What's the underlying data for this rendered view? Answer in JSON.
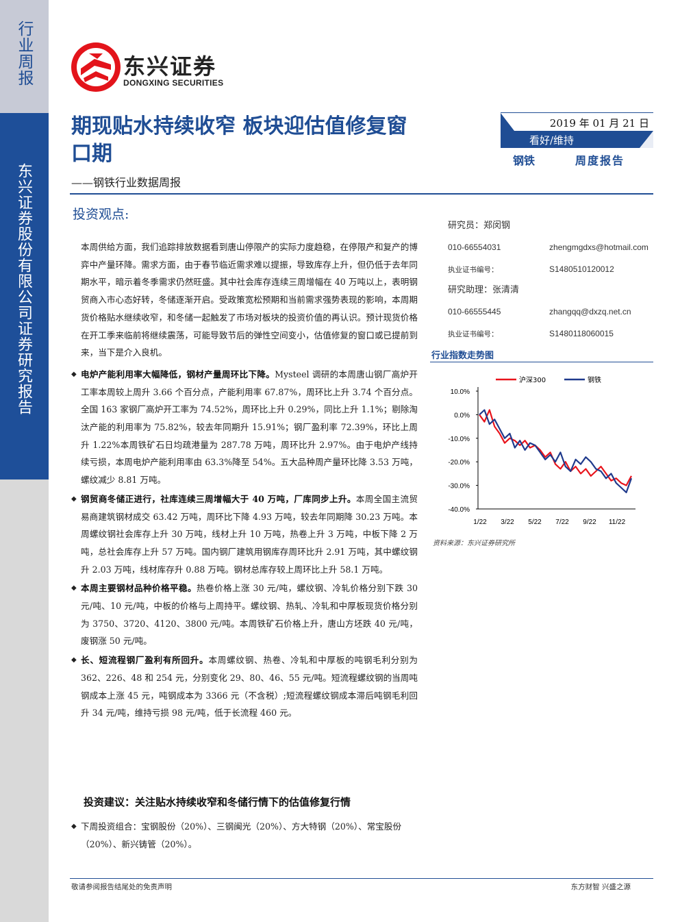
{
  "sidebar": {
    "tag": "行业周报",
    "company": "东兴证券股份有限公司证券研究报告"
  },
  "logo": {
    "cn": "东兴证券",
    "en": "DONGXING SECURITIES"
  },
  "header": {
    "title": "期现贴水持续收窄 板块迎估值修复窗口期",
    "subtitle": "——钢铁行业数据周报",
    "date": "2019 年 01 月 21 日",
    "rating": "看好/维持",
    "industry": "钢铁",
    "report_type": "周度报告"
  },
  "section_heading": "投资观点:",
  "intro": "本周供给方面，我们追踪排放数据看到唐山停限产的实际力度趋稳，在停限产和复产的博弈中产量环降。需求方面，由于春节临近需求难以提振，导致库存上升，但仍低于去年同期水平，暗示着冬季需求仍然旺盛。其中社会库存连续三周增幅在 40 万吨以上，表明钢贸商入市心态好转，冬储逐渐开启。受政策宽松预期和当前需求强势表现的影响，本周期货价格贴水继续收窄，和冬储一起触发了市场对板块的投资价值的再认识。预计现货价格在开工季来临前将继续震荡，可能导致节后的弹性空间变小，估值修复的窗口或已提前到来，当下是介入良机。",
  "bullets": [
    {
      "bold": "电炉产能利用率大幅降低，钢材产量周环比下降。",
      "text": "Mysteel 调研的本周唐山钢厂高炉开工率本周较上周升 3.66 个百分点，产能利用率 67.87%，周环比上升 3.74 个百分点。全国 163 家钢厂高炉开工率为 74.52%，周环比上升 0.29%，同比上升 1.1%；剔除淘汰产能的利用率为 75.82%，较去年同期升 15.91%；钢厂盈利率 72.39%，环比上周升 1.22%本周铁矿石日均疏港量为 287.78 万吨，周环比升 2.97%。由于电炉产线持续亏损，本周电炉产能利用率由 63.3%降至 54%。五大品种周产量环比降 3.53 万吨，螺纹减少 8.81 万吨。"
    },
    {
      "bold": "钢贸商冬储正进行，社库连续三周增幅大于 40 万吨，厂库同步上升。",
      "text": "本周全国主流贸易商建筑钢材成交 63.42 万吨，周环比下降 4.93 万吨，较去年同期降 30.23 万吨。本周螺纹钢社会库存上升 30 万吨，线材上升 10 万吨，热卷上升 3 万吨，中板下降 2 万吨，总社会库存上升 57 万吨。国内钢厂建筑用钢库存周环比升 2.91 万吨，其中螺纹钢升 2.03 万吨，线材库存升 0.88 万吨。钢材总库存较上周环比上升 58.1 万吨。"
    },
    {
      "bold": "本周主要钢材品种价格平稳。",
      "text": "热卷价格上涨 30 元/吨，螺纹钢、冷轧价格分别下跌 30 元/吨、10 元/吨，中板的价格与上周持平。螺纹钢、热轧、冷轧和中厚板现货价格分别为 3750、3720、4120、3800 元/吨。本周铁矿石价格上升，唐山方坯跌 40 元/吨，废钢涨 50 元/吨。"
    },
    {
      "bold": "长、短流程钢厂盈利有所回升。",
      "text": "本周螺纹钢、热卷、冷轧和中厚板的吨钢毛利分别为 362、226、48 和 254 元，分别变化 29、80、46、55 元/吨。短流程螺纹钢的当周吨钢成本上涨 45 元，吨钢成本为 3366 元（不含税）;短流程螺纹钢成本滞后吨钢毛利回升 34 元/吨，维持亏损 98 元/吨，低于长流程 460 元。"
    }
  ],
  "advice_heading": "投资建议：关注贴水持续收窄和冬储行情下的估值修复行情",
  "portfolio": "下周投资组合：宝钢股份（20%）、三钢闽光（20%）、方大特钢（20%）、常宝股份（20%）、新兴铸管（20%）。",
  "analysts": {
    "a1_label": "研究员：郑闵钢",
    "a1_phone": "010-66554031",
    "a1_email": "zhengmgdxs@hotmail.com",
    "a1_cert_label": "执业证书编号：",
    "a1_cert": "S1480510120012",
    "a2_label": "研究助理：张清清",
    "a2_phone": "010-66555445",
    "a2_email": "zhangqq@dxzq.net.cn",
    "a2_cert_label": "执业证书编号：",
    "a2_cert": "S1480118060015"
  },
  "chart_title": "行业指数走势图",
  "chart_source": "资料来源：东兴证券研究所",
  "chart_data": {
    "type": "line",
    "x_ticks": [
      "1/22",
      "3/22",
      "5/22",
      "7/22",
      "9/22",
      "11/22"
    ],
    "y_ticks": [
      "10.0%",
      "0.0%",
      "-10.0%",
      "-20.0%",
      "-30.0%",
      "-40.0%"
    ],
    "ylim": [
      -40,
      10
    ],
    "series": [
      {
        "name": "沪深300",
        "color": "#e8141c",
        "values": [
          0,
          -3,
          2,
          -5,
          -8,
          -12,
          -10,
          -11,
          -13,
          -11,
          -14,
          -13,
          -15,
          -18,
          -16,
          -21,
          -23,
          -20,
          -24,
          -22,
          -25,
          -23,
          -26,
          -24,
          -22,
          -25,
          -28,
          -27,
          -29,
          -30,
          -26
        ]
      },
      {
        "name": "钢铁",
        "color": "#1f3a8c",
        "values": [
          0,
          2,
          -4,
          -2,
          -6,
          -10,
          -8,
          -14,
          -11,
          -15,
          -12,
          -13,
          -16,
          -19,
          -17,
          -20,
          -16,
          -22,
          -24,
          -19,
          -21,
          -18,
          -20,
          -23,
          -24,
          -27,
          -25,
          -29,
          -31,
          -33,
          -27
        ]
      }
    ]
  },
  "footer": {
    "left": "敬请参阅报告结尾处的免责声明",
    "right": "东方财智  兴盛之源"
  },
  "colors": {
    "brand_blue": "#1f4d94",
    "logo_red": "#e3141b"
  }
}
